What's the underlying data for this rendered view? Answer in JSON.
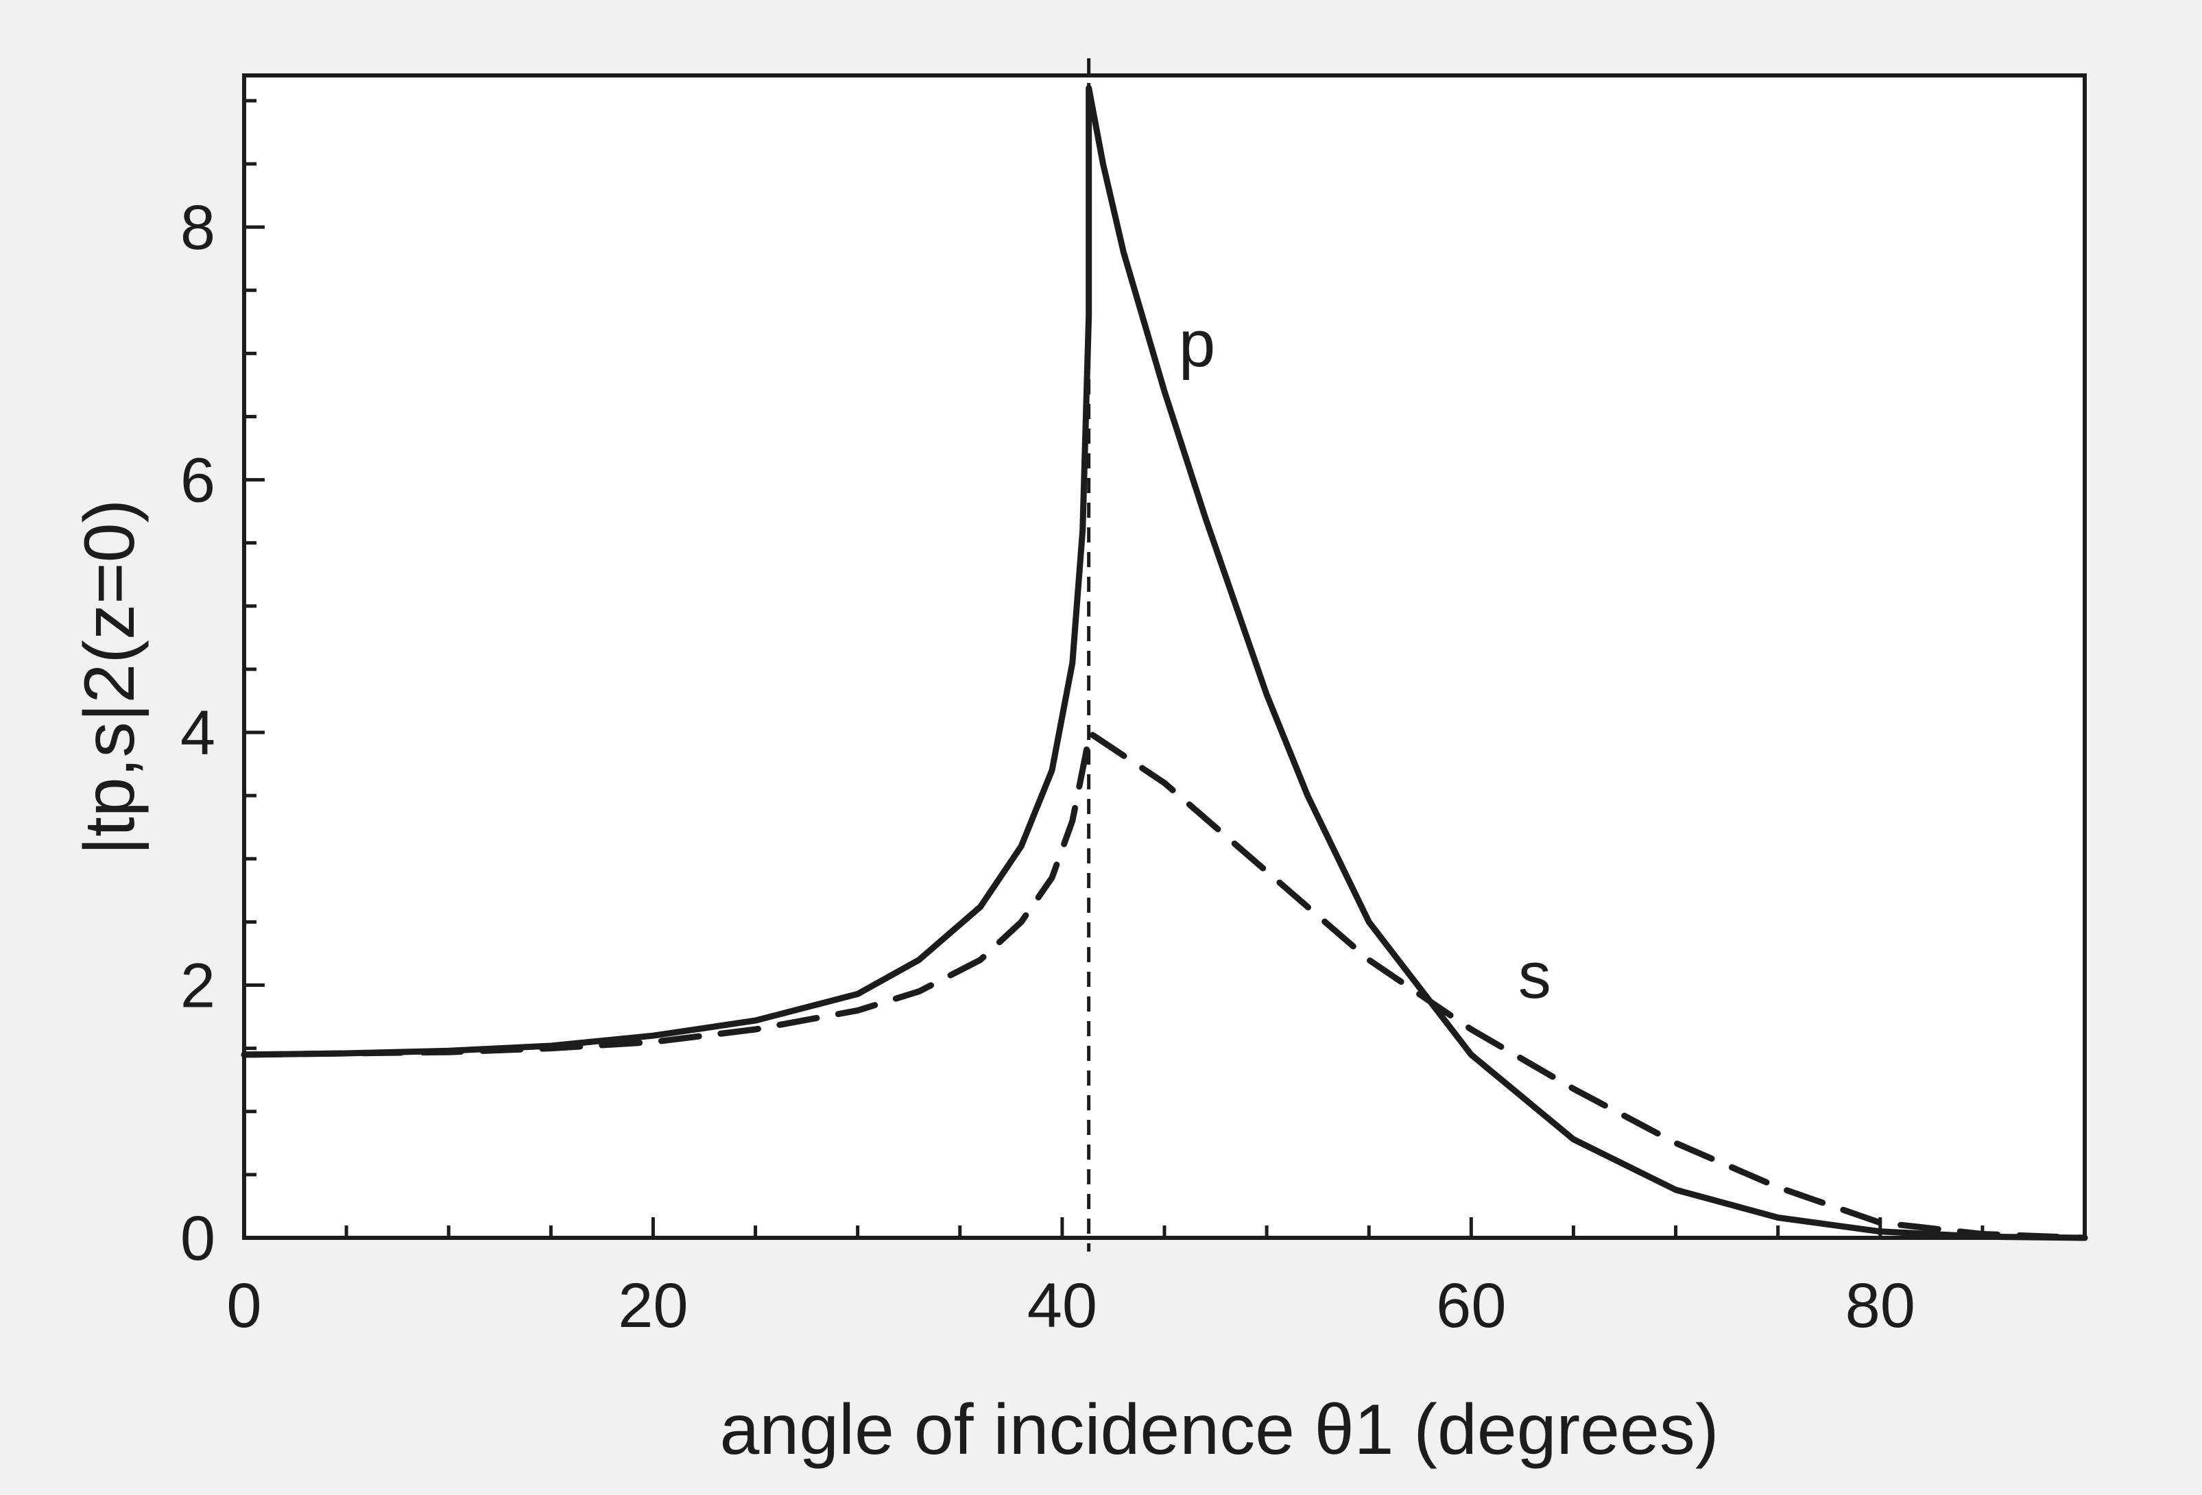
{
  "chart_data": {
    "type": "line",
    "xlabel": "angle of incidence θ1 (degrees)",
    "ylabel": "|tp,s|2(z=0)",
    "xlim": [
      0,
      90
    ],
    "ylim": [
      0,
      9.2
    ],
    "xticks": [
      0,
      20,
      40,
      60,
      80
    ],
    "yticks": [
      0,
      2,
      4,
      6,
      8
    ],
    "grid": false,
    "legend": "none",
    "critical_angle": 41.3,
    "series": [
      {
        "name": "p",
        "style": "solid",
        "x": [
          0,
          5,
          10,
          15,
          20,
          25,
          30,
          33,
          36,
          38,
          39.5,
          40.5,
          41,
          41.3,
          41.3,
          42,
          43,
          45,
          47,
          50,
          52,
          55,
          60,
          65,
          70,
          75,
          80,
          85,
          90
        ],
        "y": [
          1.45,
          1.46,
          1.48,
          1.52,
          1.6,
          1.72,
          1.93,
          2.2,
          2.62,
          3.1,
          3.7,
          4.55,
          5.6,
          7.3,
          9.1,
          8.5,
          7.8,
          6.7,
          5.7,
          4.3,
          3.5,
          2.5,
          1.45,
          0.78,
          0.38,
          0.16,
          0.05,
          0.01,
          0
        ],
        "color": "#1c1c1c"
      },
      {
        "name": "s",
        "style": "dashed",
        "x": [
          0,
          5,
          10,
          15,
          20,
          25,
          30,
          33,
          36,
          38,
          39.5,
          40.5,
          41.3,
          41.3,
          45,
          50,
          55,
          60,
          65,
          70,
          75,
          80,
          85,
          90
        ],
        "y": [
          1.45,
          1.46,
          1.47,
          1.5,
          1.55,
          1.65,
          1.8,
          1.95,
          2.2,
          2.5,
          2.85,
          3.3,
          3.95,
          4.0,
          3.6,
          2.9,
          2.2,
          1.65,
          1.18,
          0.75,
          0.4,
          0.12,
          0.03,
          0
        ]
      }
    ]
  }
}
